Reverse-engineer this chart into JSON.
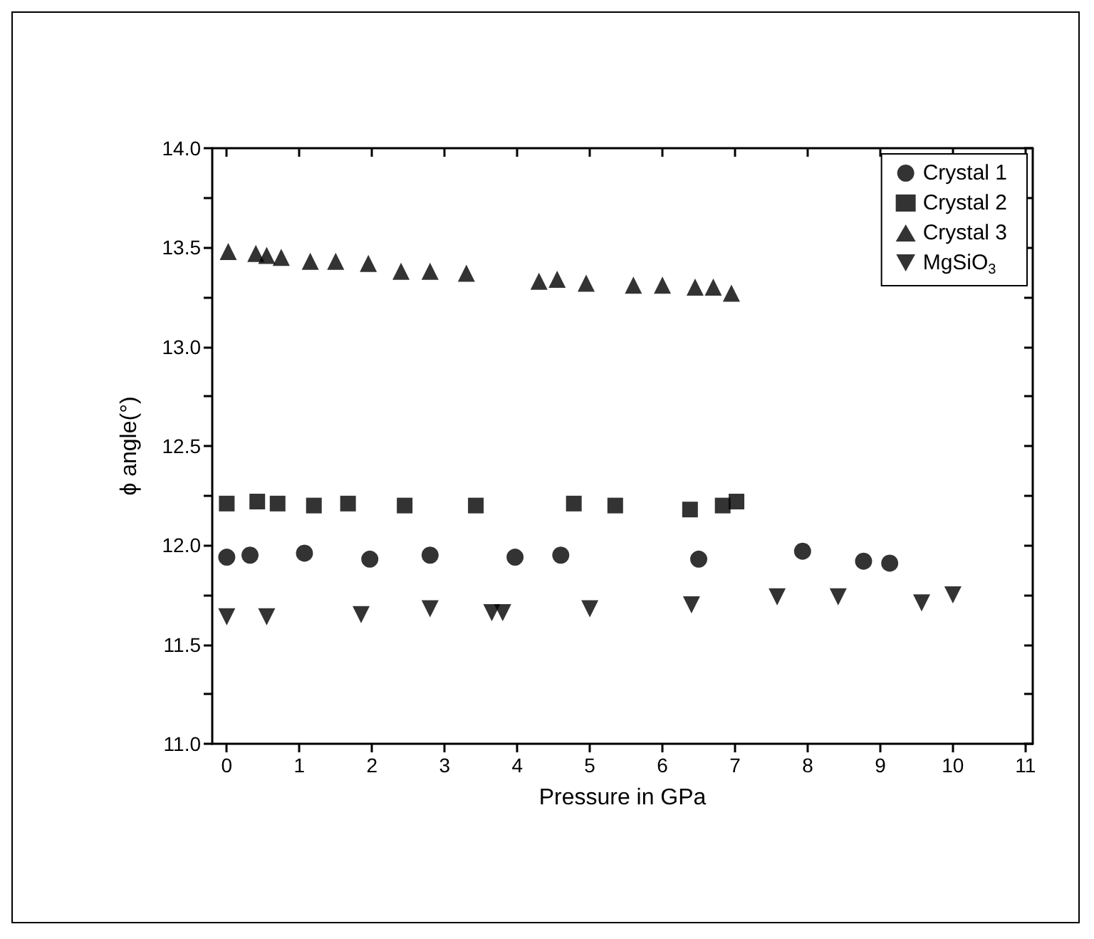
{
  "chart_data": {
    "type": "scatter",
    "xlabel": "Pressure in GPa",
    "ylabel": "ϕ angle(°)",
    "xlim": [
      -0.2,
      11.1
    ],
    "xticks": [
      0,
      1,
      2,
      3,
      4,
      5,
      6,
      7,
      8,
      9,
      10,
      11
    ],
    "ylim": [
      11,
      14
    ],
    "yticks": [
      {
        "value": 11,
        "label": "11.0"
      },
      {
        "value": 11.25,
        "label": null
      },
      {
        "value": 11.5,
        "label": "11.5"
      },
      {
        "value": 11.75,
        "label": null
      },
      {
        "value": 12,
        "label": "12.0"
      },
      {
        "value": 12.25,
        "label": null
      },
      {
        "value": 12.5,
        "label": "12.5"
      },
      {
        "value": 12.75,
        "label": null
      },
      {
        "value": 13,
        "label": "13.0"
      },
      {
        "value": 13.25,
        "label": null
      },
      {
        "value": 13.5,
        "label": "13.5"
      },
      {
        "value": 13.75,
        "label": null
      },
      {
        "value": 14,
        "label": "14.0"
      }
    ],
    "grid": false,
    "legend": "top right",
    "series": [
      {
        "name": "Crystal 1",
        "color": "#000000",
        "marker": "circle",
        "x": [
          0,
          0.32,
          1.07,
          1.97,
          2.8,
          3.97,
          4.6,
          6.5,
          7.93,
          8.77,
          9.13
        ],
        "values": [
          11.94,
          11.95,
          11.96,
          11.93,
          11.95,
          11.94,
          11.95,
          11.93,
          11.97,
          11.92,
          11.91
        ]
      },
      {
        "name": "Crystal 2",
        "color": "#000000",
        "marker": "square",
        "x": [
          0,
          0.42,
          0.7,
          1.2,
          1.67,
          2.45,
          3.43,
          4.78,
          5.35,
          6.38,
          6.83,
          7.02
        ],
        "values": [
          12.21,
          12.22,
          12.21,
          12.2,
          12.21,
          12.2,
          12.2,
          12.21,
          12.2,
          12.18,
          12.2,
          12.22
        ]
      },
      {
        "name": "Crystal 3",
        "color": "#000000",
        "marker": "triangle",
        "x": [
          0.02,
          0.4,
          0.55,
          0.75,
          1.15,
          1.5,
          1.95,
          2.4,
          2.8,
          3.3,
          4.3,
          4.55,
          4.95,
          5.6,
          6.0,
          6.45,
          6.7,
          6.95
        ],
        "values": [
          13.48,
          13.47,
          13.46,
          13.45,
          13.43,
          13.43,
          13.42,
          13.38,
          13.38,
          13.37,
          13.33,
          13.34,
          13.32,
          13.31,
          13.31,
          13.3,
          13.3,
          13.27
        ]
      },
      {
        "name": "MgSiO$_{3}$",
        "color": "#000000",
        "marker": "triangle-down",
        "x": [
          0,
          0.55,
          1.85,
          2.8,
          3.65,
          3.8,
          5.0,
          6.4,
          7.58,
          8.42,
          9.57,
          10.0
        ],
        "values": [
          11.64,
          11.64,
          11.65,
          11.68,
          11.66,
          11.66,
          11.68,
          11.7,
          11.74,
          11.74,
          11.71,
          11.75
        ]
      }
    ]
  }
}
